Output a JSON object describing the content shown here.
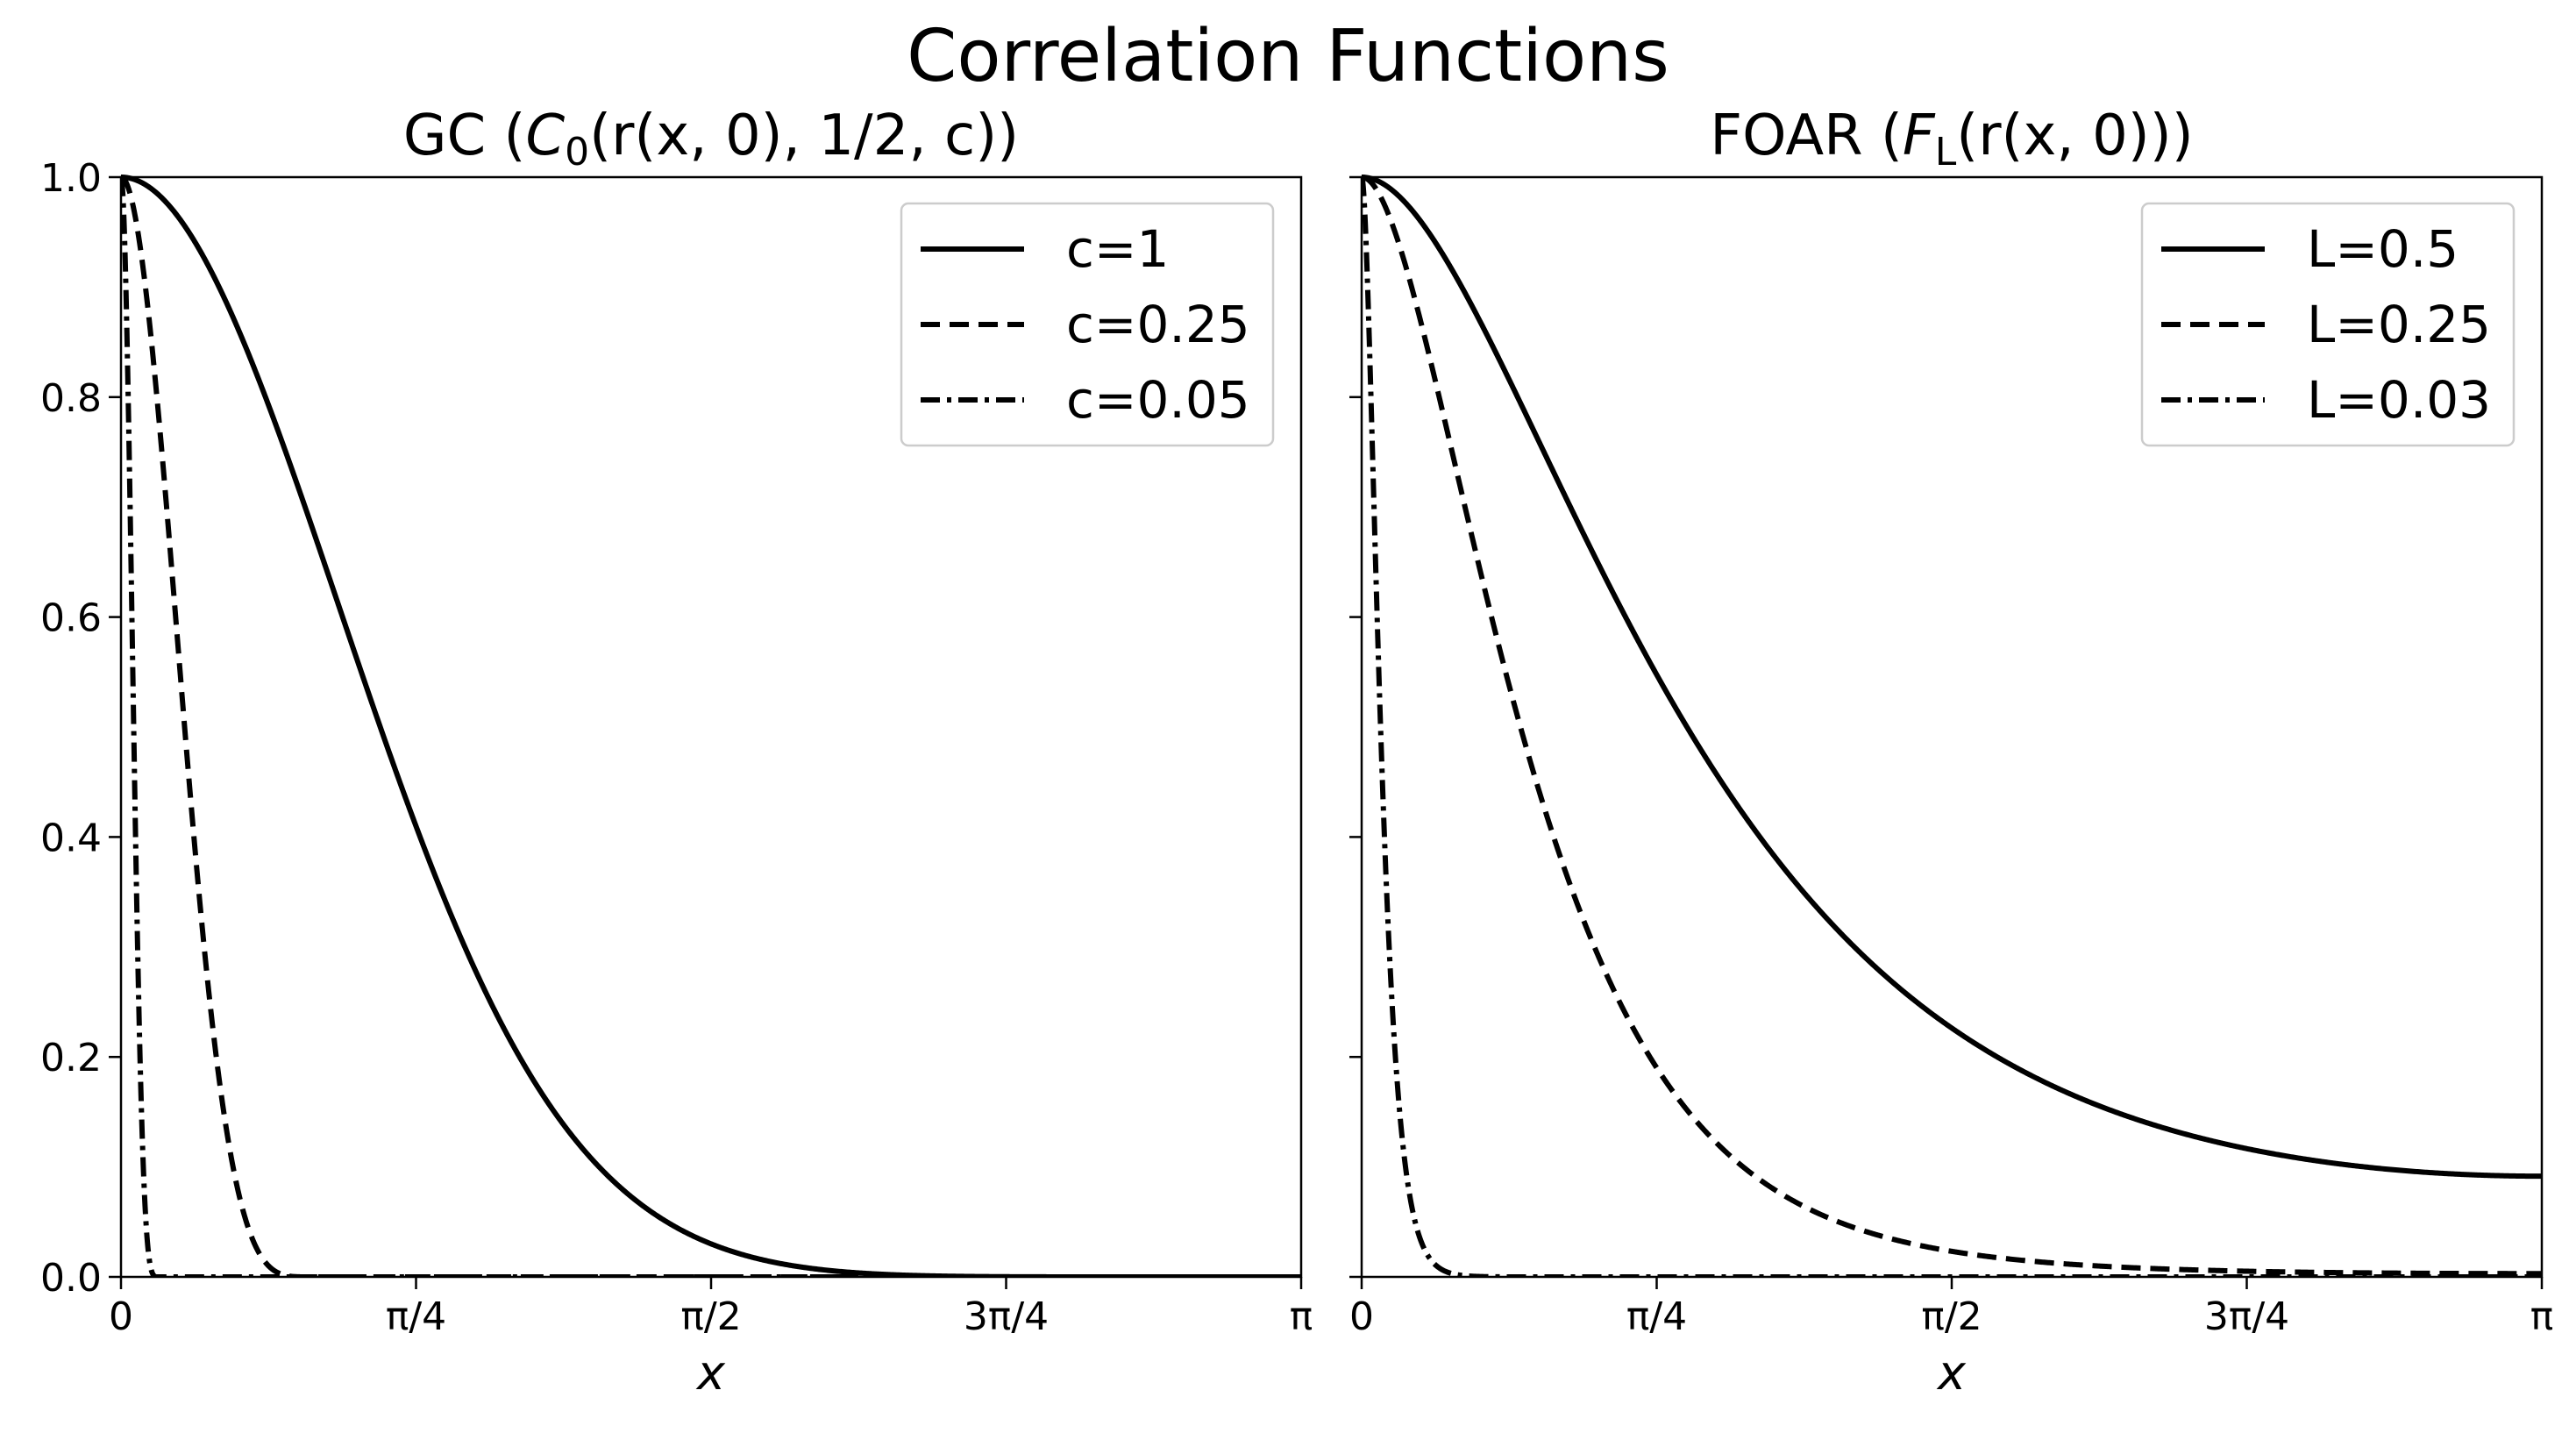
{
  "suptitle": "Correlation Functions",
  "chart_data": [
    {
      "type": "line",
      "title": "GC (C₀(r(x, 0), 1/2, c))",
      "title_parts": {
        "prefix": "GC (",
        "func": "C",
        "sub": "0",
        "args": "(r(x, 0), 1/2, c))"
      },
      "xlabel": "x",
      "ylabel": "",
      "xlim": [
        0,
        3.14159265
      ],
      "ylim": [
        0,
        1
      ],
      "xticks": [
        0,
        0.785398,
        1.570796,
        2.356194,
        3.141593
      ],
      "xtick_labels": [
        "0",
        "π/4",
        "π/2",
        "3π/4",
        "π"
      ],
      "yticks": [
        0,
        0.2,
        0.4,
        0.6,
        0.8,
        1.0
      ],
      "ytick_labels": [
        "0.0",
        "0.2",
        "0.4",
        "0.6",
        "0.8",
        "1.0"
      ],
      "legend_position": "top-right",
      "series": [
        {
          "name": "c=1",
          "style": "solid",
          "model": "gaspari-cohn",
          "param": 1.0
        },
        {
          "name": "c=0.25",
          "style": "dashed",
          "model": "gaspari-cohn",
          "param": 0.25
        },
        {
          "name": "c=0.05",
          "style": "dashdot",
          "model": "gaspari-cohn",
          "param": 0.05
        }
      ]
    },
    {
      "type": "line",
      "title": "FOAR (F_L(r(x, 0)))",
      "title_parts": {
        "prefix": "FOAR (",
        "func": "F",
        "sub": "L",
        "args": "(r(x, 0)))"
      },
      "xlabel": "x",
      "ylabel": "",
      "xlim": [
        0,
        3.14159265
      ],
      "ylim": [
        0,
        1
      ],
      "xticks": [
        0,
        0.785398,
        1.570796,
        2.356194,
        3.141593
      ],
      "xtick_labels": [
        "0",
        "π/4",
        "π/2",
        "3π/4",
        "π"
      ],
      "yticks": [
        0,
        0.2,
        0.4,
        0.6,
        0.8,
        1.0
      ],
      "legend_position": "top-right",
      "series": [
        {
          "name": "L=0.5",
          "style": "solid",
          "model": "foar",
          "param": 0.5
        },
        {
          "name": "L=0.25",
          "style": "dashed",
          "model": "foar",
          "param": 0.25
        },
        {
          "name": "L=0.03",
          "style": "dashdot",
          "model": "foar",
          "param": 0.03
        }
      ]
    }
  ]
}
